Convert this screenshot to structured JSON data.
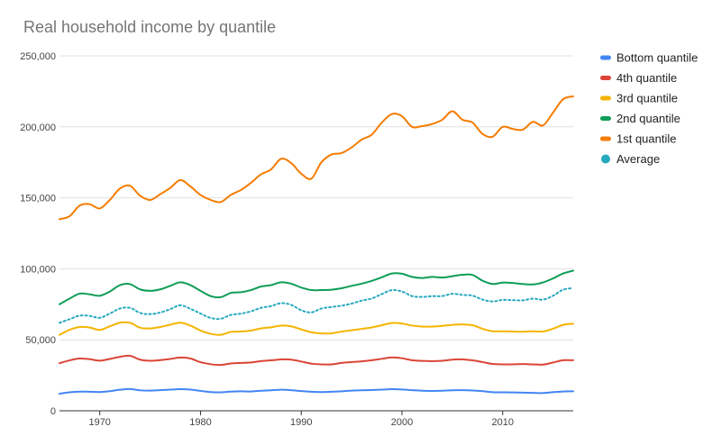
{
  "chart_data": {
    "type": "line",
    "title": "Real household income by quantile",
    "xlabel": "",
    "ylabel": "",
    "xlim": [
      1966,
      2017
    ],
    "ylim": [
      0,
      250000
    ],
    "grid": true,
    "legend_position": "right",
    "y_ticks": [
      {
        "value": 0,
        "label": "0"
      },
      {
        "value": 50000,
        "label": "50,000"
      },
      {
        "value": 100000,
        "label": "100,000"
      },
      {
        "value": 150000,
        "label": "150,000"
      },
      {
        "value": 200000,
        "label": "200,000"
      },
      {
        "value": 250000,
        "label": "250,000"
      }
    ],
    "x_ticks": [
      {
        "value": 1970,
        "label": "1970"
      },
      {
        "value": 1980,
        "label": "1980"
      },
      {
        "value": 1990,
        "label": "1990"
      },
      {
        "value": 2000,
        "label": "2000"
      },
      {
        "value": 2010,
        "label": "2010"
      }
    ],
    "x": [
      1966,
      1967,
      1968,
      1969,
      1970,
      1971,
      1972,
      1973,
      1974,
      1975,
      1976,
      1977,
      1978,
      1979,
      1980,
      1981,
      1982,
      1983,
      1984,
      1985,
      1986,
      1987,
      1988,
      1989,
      1990,
      1991,
      1992,
      1993,
      1994,
      1995,
      1996,
      1997,
      1998,
      1999,
      2000,
      2001,
      2002,
      2003,
      2004,
      2005,
      2006,
      2007,
      2008,
      2009,
      2010,
      2011,
      2012,
      2013,
      2014,
      2015,
      2016,
      2017
    ],
    "series": [
      {
        "name": "Bottom quantile",
        "color": "#4285F4",
        "style": "solid",
        "values": [
          12000,
          13000,
          13500,
          13400,
          13200,
          13800,
          14800,
          15300,
          14400,
          14200,
          14500,
          14900,
          15200,
          14900,
          14000,
          13200,
          13000,
          13500,
          13700,
          13600,
          14100,
          14400,
          14800,
          14500,
          13900,
          13400,
          13200,
          13400,
          13700,
          14200,
          14400,
          14600,
          14900,
          15200,
          15000,
          14500,
          14100,
          14000,
          14100,
          14400,
          14500,
          14300,
          13800,
          13100,
          13000,
          12900,
          12800,
          12600,
          12500,
          13100,
          13600,
          13700
        ]
      },
      {
        "name": "4th quantile",
        "color": "#DB4437",
        "style": "solid",
        "values": [
          33500,
          35500,
          36800,
          36300,
          35300,
          36500,
          38000,
          38700,
          36000,
          35200,
          35700,
          36500,
          37500,
          36800,
          34200,
          32800,
          32300,
          33300,
          33700,
          34000,
          35000,
          35500,
          36200,
          36000,
          34700,
          33200,
          32700,
          32700,
          33700,
          34300,
          34800,
          35600,
          36600,
          37600,
          37000,
          35600,
          35100,
          35000,
          35200,
          36000,
          36200,
          35500,
          34300,
          33000,
          32700,
          32700,
          32900,
          32700,
          32500,
          34000,
          35600,
          35600
        ]
      },
      {
        "name": "3rd quantile",
        "color": "#F4B400",
        "style": "solid",
        "values": [
          53500,
          57000,
          59000,
          58600,
          57000,
          59500,
          62000,
          62000,
          58500,
          58000,
          59000,
          60600,
          62000,
          60000,
          56500,
          54200,
          53500,
          55500,
          55800,
          56500,
          58000,
          58800,
          60000,
          59500,
          57300,
          55300,
          54500,
          54500,
          55800,
          56700,
          57700,
          58700,
          60300,
          61800,
          61500,
          60000,
          59300,
          59300,
          59800,
          60500,
          60800,
          60300,
          57700,
          56000,
          56000,
          55800,
          55700,
          56000,
          55800,
          57800,
          60500,
          61300
        ]
      },
      {
        "name": "2nd quantile",
        "color": "#0F9D58",
        "style": "solid",
        "values": [
          75000,
          79000,
          82500,
          82000,
          81000,
          84000,
          88500,
          89200,
          85500,
          84500,
          85500,
          88000,
          90500,
          88500,
          84500,
          80800,
          80000,
          83000,
          83500,
          85000,
          87500,
          88500,
          90500,
          89500,
          86800,
          85000,
          85000,
          85300,
          86300,
          88000,
          89500,
          91500,
          94000,
          96700,
          96500,
          94300,
          93500,
          94300,
          93800,
          94800,
          95800,
          95700,
          91600,
          89300,
          90300,
          90000,
          89300,
          89000,
          90400,
          93200,
          96700,
          98700
        ]
      },
      {
        "name": "1st quantile",
        "color": "#F57C00",
        "style": "solid",
        "values": [
          135000,
          137000,
          144500,
          145500,
          142500,
          148500,
          156500,
          158500,
          151500,
          148500,
          152500,
          157000,
          162500,
          158000,
          152000,
          148500,
          147000,
          152000,
          155500,
          160500,
          166500,
          170000,
          177500,
          174500,
          167000,
          163500,
          175000,
          180500,
          181500,
          185500,
          191000,
          194500,
          203000,
          209000,
          207500,
          200000,
          200500,
          202000,
          205000,
          211000,
          205000,
          203000,
          195000,
          193000,
          200000,
          198500,
          198000,
          203500,
          201000,
          210000,
          219500,
          221500
        ]
      },
      {
        "name": "Average",
        "color": "#26A9BF",
        "style": "dotted",
        "values": [
          62000,
          64500,
          67000,
          66800,
          65500,
          68500,
          72000,
          72500,
          68900,
          68100,
          69200,
          71600,
          74300,
          71800,
          68500,
          65400,
          64800,
          67500,
          68400,
          70000,
          72500,
          73700,
          75800,
          74600,
          70800,
          69300,
          72000,
          73100,
          74000,
          75500,
          77600,
          79100,
          82200,
          85000,
          84000,
          80800,
          80200,
          80700,
          80800,
          82400,
          81600,
          81100,
          78300,
          77000,
          78100,
          77900,
          77800,
          79000,
          78300,
          81000,
          85300,
          86400
        ]
      }
    ]
  }
}
